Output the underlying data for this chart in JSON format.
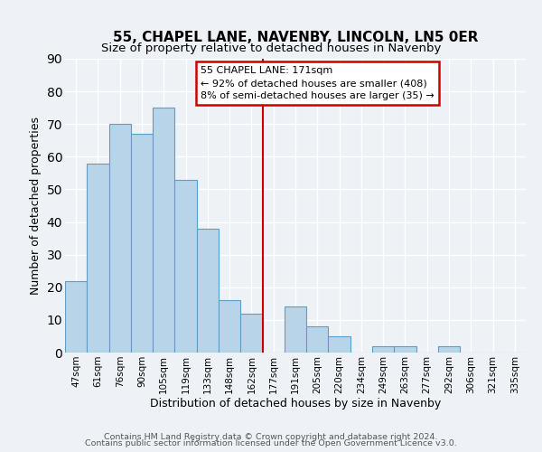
{
  "title": "55, CHAPEL LANE, NAVENBY, LINCOLN, LN5 0ER",
  "subtitle": "Size of property relative to detached houses in Navenby",
  "xlabel": "Distribution of detached houses by size in Navenby",
  "ylabel": "Number of detached properties",
  "bar_labels": [
    "47sqm",
    "61sqm",
    "76sqm",
    "90sqm",
    "105sqm",
    "119sqm",
    "133sqm",
    "148sqm",
    "162sqm",
    "177sqm",
    "191sqm",
    "205sqm",
    "220sqm",
    "234sqm",
    "249sqm",
    "263sqm",
    "277sqm",
    "292sqm",
    "306sqm",
    "321sqm",
    "335sqm"
  ],
  "bar_values": [
    22,
    58,
    70,
    67,
    75,
    53,
    38,
    16,
    12,
    0,
    14,
    8,
    5,
    0,
    2,
    2,
    0,
    2,
    0,
    0,
    0
  ],
  "bar_color": "#b8d4e8",
  "bar_edge_color": "#5a9ec9",
  "vline_x": 9,
  "vline_color": "#cc0000",
  "ylim": [
    0,
    90
  ],
  "annotation_line1": "55 CHAPEL LANE: 171sqm",
  "annotation_line2": "← 92% of detached houses are smaller (408)",
  "annotation_line3": "8% of semi-detached houses are larger (35) →",
  "footer_line1": "Contains HM Land Registry data © Crown copyright and database right 2024.",
  "footer_line2": "Contains public sector information licensed under the Open Government Licence v3.0.",
  "title_fontsize": 11,
  "subtitle_fontsize": 9.5,
  "axis_label_fontsize": 9,
  "tick_fontsize": 7.5,
  "footer_fontsize": 6.8,
  "background_color": "#eef2f7"
}
